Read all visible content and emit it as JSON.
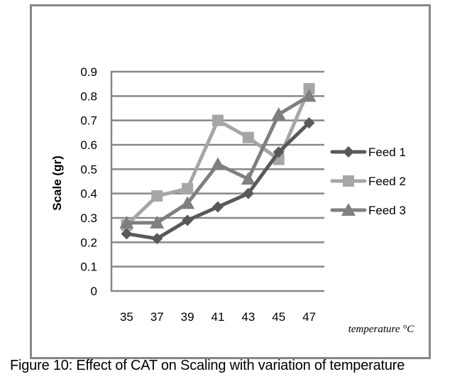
{
  "caption": "Figure 10: Effect of CAT on Scaling with variation of temperature",
  "chart_data": {
    "type": "line",
    "title": "",
    "xlabel": "temperature °C",
    "ylabel": "Scale (gr)",
    "categories": [
      "35",
      "37",
      "39",
      "41",
      "43",
      "45",
      "47"
    ],
    "ylim": [
      0,
      0.9
    ],
    "yticks": [
      "0",
      "0.1",
      "0.2",
      "0.3",
      "0.4",
      "0.5",
      "0.6",
      "0.7",
      "0.8",
      "0.9"
    ],
    "grid": "horizontal",
    "legend_position": "right",
    "series": [
      {
        "name": "Feed 1",
        "marker": "diamond",
        "color": "#595959",
        "values": [
          0.235,
          0.215,
          0.29,
          0.345,
          0.4,
          0.57,
          0.69
        ]
      },
      {
        "name": "Feed 2",
        "marker": "square",
        "color": "#a6a6a6",
        "values": [
          0.27,
          0.39,
          0.42,
          0.7,
          0.63,
          0.54,
          0.83
        ]
      },
      {
        "name": "Feed 3",
        "marker": "triangle",
        "color": "#7f7f7f",
        "values": [
          0.28,
          0.28,
          0.36,
          0.52,
          0.46,
          0.725,
          0.8
        ]
      }
    ]
  }
}
